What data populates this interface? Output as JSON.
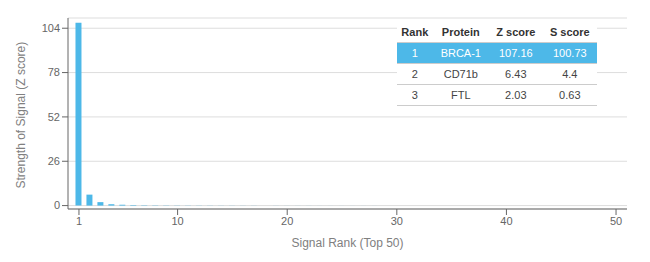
{
  "chart_data": {
    "type": "bar",
    "x": [
      1,
      2,
      3,
      4,
      5,
      6,
      7,
      8,
      9,
      10,
      11,
      12,
      13,
      14,
      15,
      16,
      17,
      18,
      19,
      20,
      21,
      22,
      23,
      24,
      25,
      26,
      27,
      28,
      29,
      30,
      31,
      32,
      33,
      34,
      35,
      36,
      37,
      38,
      39,
      40,
      41,
      42,
      43,
      44,
      45,
      46,
      47,
      48,
      49,
      50
    ],
    "values": [
      107.16,
      6.43,
      2.03,
      0.8,
      0.5,
      0.3,
      0.2,
      0.15,
      0.12,
      0.1,
      0.09,
      0.08,
      0.07,
      0.06,
      0.06,
      0.05,
      0.05,
      0.04,
      0.04,
      0.03,
      0.03,
      0.03,
      0.02,
      0.02,
      0.02,
      0.02,
      0.02,
      0.02,
      0.01,
      0.01,
      0.01,
      0.01,
      0.01,
      0.01,
      0.01,
      0.01,
      0.01,
      0.01,
      0.01,
      0.01,
      0.01,
      0.01,
      0.01,
      0.01,
      0.01,
      0.01,
      0.01,
      0.01,
      0.01,
      0.01
    ],
    "color": "#4db8e8",
    "xlabel": "Signal Rank (Top 50)",
    "ylabel": "Strength of Signal (Z score)",
    "xlim": [
      0,
      51
    ],
    "ylim": [
      -2,
      110
    ],
    "xticks": [
      1,
      10,
      20,
      30,
      40,
      50
    ],
    "yticks": [
      0,
      26,
      52,
      78,
      104
    ],
    "grid": true,
    "table": {
      "columns": [
        "Rank",
        "Protein",
        "Z score",
        "S score"
      ],
      "rows": [
        [
          "1",
          "BRCA-1",
          "107.16",
          "100.73"
        ],
        [
          "2",
          "CD71b",
          "6.43",
          "4.4"
        ],
        [
          "3",
          "FTL",
          "2.03",
          "0.63"
        ]
      ]
    }
  }
}
